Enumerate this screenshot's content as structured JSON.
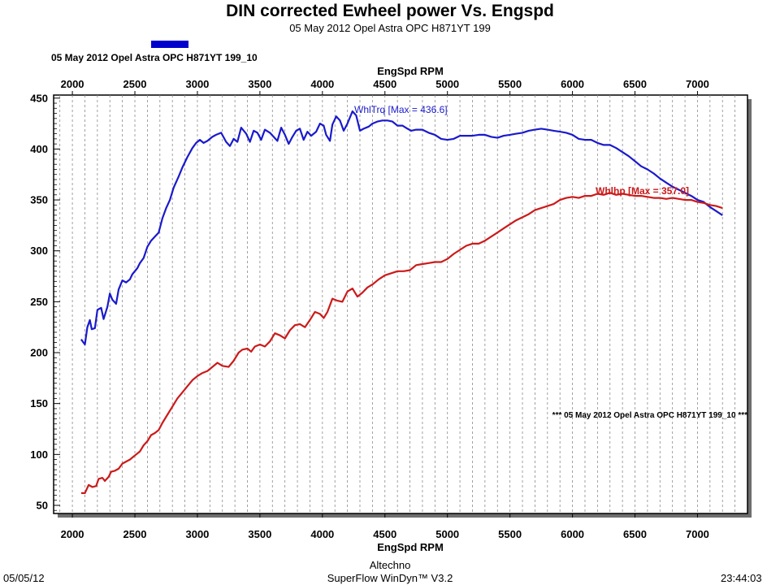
{
  "header": {
    "title": "DIN corrected Ewheel power Vs. Engspd",
    "subtitle": "05 May 2012 Opel Astra OPC H871YT 199"
  },
  "legend": {
    "label": "05 May 2012 Opel Astra OPC H871YT 199_10",
    "color": "#0000cc"
  },
  "footer": {
    "date": "05/05/12",
    "company": "Altechno",
    "software": "SuperFlow WinDyn™ V3.2",
    "time": "23:44:03"
  },
  "chart_data": {
    "type": "line",
    "xlabel_top": "EngSpd RPM",
    "xlabel_bottom": "EngSpd RPM",
    "ylabel": "",
    "xlim": [
      1850,
      7400
    ],
    "ylim": [
      42,
      453
    ],
    "x_ticks": [
      2000,
      2500,
      3000,
      3500,
      4000,
      4500,
      5000,
      5500,
      6000,
      6500,
      7000
    ],
    "y_ticks": [
      50,
      100,
      150,
      200,
      250,
      300,
      350,
      400,
      450
    ],
    "grid": "vertical-dashed",
    "run_note": "*** 05 May 2012 Opel Astra OPC H871YT 199_10 ***",
    "series": [
      {
        "name": "WhlTrq",
        "color": "#1a1acc",
        "annotation": "WhlTrq [Max = 436.6]",
        "points": [
          [
            2070,
            213
          ],
          [
            2100,
            208
          ],
          [
            2120,
            225
          ],
          [
            2140,
            232
          ],
          [
            2155,
            223
          ],
          [
            2180,
            224
          ],
          [
            2200,
            242
          ],
          [
            2230,
            244
          ],
          [
            2250,
            233
          ],
          [
            2280,
            245
          ],
          [
            2300,
            258
          ],
          [
            2320,
            252
          ],
          [
            2350,
            248
          ],
          [
            2370,
            262
          ],
          [
            2400,
            271
          ],
          [
            2430,
            269
          ],
          [
            2460,
            272
          ],
          [
            2480,
            277
          ],
          [
            2520,
            283
          ],
          [
            2540,
            288
          ],
          [
            2570,
            293
          ],
          [
            2600,
            304
          ],
          [
            2630,
            310
          ],
          [
            2660,
            314
          ],
          [
            2690,
            318
          ],
          [
            2720,
            332
          ],
          [
            2750,
            342
          ],
          [
            2780,
            350
          ],
          [
            2810,
            362
          ],
          [
            2850,
            373
          ],
          [
            2880,
            382
          ],
          [
            2920,
            392
          ],
          [
            2960,
            401
          ],
          [
            2990,
            406
          ],
          [
            3020,
            409
          ],
          [
            3050,
            406
          ],
          [
            3080,
            408
          ],
          [
            3120,
            412
          ],
          [
            3150,
            414
          ],
          [
            3190,
            416
          ],
          [
            3230,
            407
          ],
          [
            3260,
            403
          ],
          [
            3290,
            410
          ],
          [
            3320,
            407
          ],
          [
            3350,
            421
          ],
          [
            3390,
            415
          ],
          [
            3420,
            407
          ],
          [
            3450,
            418
          ],
          [
            3480,
            416
          ],
          [
            3510,
            409
          ],
          [
            3540,
            419
          ],
          [
            3580,
            416
          ],
          [
            3610,
            412
          ],
          [
            3640,
            408
          ],
          [
            3670,
            421
          ],
          [
            3700,
            414
          ],
          [
            3730,
            405
          ],
          [
            3760,
            412
          ],
          [
            3790,
            418
          ],
          [
            3820,
            420
          ],
          [
            3850,
            409
          ],
          [
            3880,
            417
          ],
          [
            3910,
            413
          ],
          [
            3950,
            417
          ],
          [
            3980,
            425
          ],
          [
            4010,
            423
          ],
          [
            4030,
            414
          ],
          [
            4060,
            408
          ],
          [
            4080,
            424
          ],
          [
            4110,
            432
          ],
          [
            4140,
            428
          ],
          [
            4170,
            418
          ],
          [
            4200,
            425
          ],
          [
            4240,
            437
          ],
          [
            4270,
            433
          ],
          [
            4300,
            418
          ],
          [
            4330,
            420
          ],
          [
            4370,
            422
          ],
          [
            4400,
            425
          ],
          [
            4440,
            427
          ],
          [
            4480,
            428
          ],
          [
            4520,
            428
          ],
          [
            4560,
            427
          ],
          [
            4600,
            423
          ],
          [
            4640,
            423
          ],
          [
            4680,
            420
          ],
          [
            4710,
            418
          ],
          [
            4750,
            419
          ],
          [
            4800,
            419
          ],
          [
            4850,
            416
          ],
          [
            4900,
            414
          ],
          [
            4950,
            410
          ],
          [
            5000,
            409
          ],
          [
            5050,
            410
          ],
          [
            5100,
            413
          ],
          [
            5150,
            413
          ],
          [
            5200,
            413
          ],
          [
            5250,
            414
          ],
          [
            5300,
            414
          ],
          [
            5350,
            412
          ],
          [
            5400,
            411
          ],
          [
            5450,
            413
          ],
          [
            5500,
            414
          ],
          [
            5550,
            415
          ],
          [
            5600,
            416
          ],
          [
            5650,
            418
          ],
          [
            5700,
            419
          ],
          [
            5750,
            420
          ],
          [
            5800,
            419
          ],
          [
            5850,
            418
          ],
          [
            5900,
            417
          ],
          [
            5950,
            416
          ],
          [
            6000,
            414
          ],
          [
            6050,
            410
          ],
          [
            6100,
            409
          ],
          [
            6150,
            409
          ],
          [
            6200,
            406
          ],
          [
            6250,
            404
          ],
          [
            6300,
            404
          ],
          [
            6350,
            401
          ],
          [
            6400,
            397
          ],
          [
            6450,
            393
          ],
          [
            6500,
            388
          ],
          [
            6550,
            383
          ],
          [
            6600,
            380
          ],
          [
            6650,
            376
          ],
          [
            6700,
            371
          ],
          [
            6750,
            367
          ],
          [
            6800,
            363
          ],
          [
            6850,
            360
          ],
          [
            6900,
            357
          ],
          [
            6950,
            354
          ],
          [
            7000,
            350
          ],
          [
            7050,
            348
          ],
          [
            7100,
            343
          ],
          [
            7150,
            339
          ],
          [
            7200,
            335
          ]
        ]
      },
      {
        "name": "Whlhp",
        "color": "#cc1a1a",
        "annotation": "Whlhp  [Max = 357.0]",
        "points": [
          [
            2070,
            62
          ],
          [
            2100,
            62
          ],
          [
            2130,
            70
          ],
          [
            2160,
            68
          ],
          [
            2190,
            69
          ],
          [
            2210,
            76
          ],
          [
            2240,
            77
          ],
          [
            2260,
            74
          ],
          [
            2290,
            78
          ],
          [
            2310,
            83
          ],
          [
            2340,
            84
          ],
          [
            2370,
            86
          ],
          [
            2400,
            91
          ],
          [
            2430,
            93
          ],
          [
            2460,
            95
          ],
          [
            2480,
            97
          ],
          [
            2510,
            100
          ],
          [
            2540,
            103
          ],
          [
            2570,
            109
          ],
          [
            2600,
            113
          ],
          [
            2630,
            119
          ],
          [
            2660,
            121
          ],
          [
            2690,
            124
          ],
          [
            2720,
            131
          ],
          [
            2760,
            139
          ],
          [
            2800,
            147
          ],
          [
            2840,
            155
          ],
          [
            2880,
            161
          ],
          [
            2920,
            167
          ],
          [
            2960,
            173
          ],
          [
            3000,
            177
          ],
          [
            3040,
            180
          ],
          [
            3080,
            182
          ],
          [
            3120,
            186
          ],
          [
            3160,
            190
          ],
          [
            3200,
            187
          ],
          [
            3250,
            186
          ],
          [
            3290,
            192
          ],
          [
            3330,
            200
          ],
          [
            3360,
            203
          ],
          [
            3400,
            204
          ],
          [
            3430,
            201
          ],
          [
            3460,
            206
          ],
          [
            3500,
            208
          ],
          [
            3540,
            206
          ],
          [
            3580,
            211
          ],
          [
            3620,
            219
          ],
          [
            3660,
            217
          ],
          [
            3700,
            214
          ],
          [
            3740,
            222
          ],
          [
            3780,
            227
          ],
          [
            3820,
            228
          ],
          [
            3860,
            225
          ],
          [
            3900,
            232
          ],
          [
            3940,
            240
          ],
          [
            3980,
            238
          ],
          [
            4010,
            234
          ],
          [
            4040,
            240
          ],
          [
            4080,
            253
          ],
          [
            4120,
            251
          ],
          [
            4160,
            250
          ],
          [
            4200,
            260
          ],
          [
            4240,
            263
          ],
          [
            4280,
            255
          ],
          [
            4320,
            259
          ],
          [
            4360,
            264
          ],
          [
            4400,
            267
          ],
          [
            4450,
            272
          ],
          [
            4500,
            276
          ],
          [
            4550,
            278
          ],
          [
            4600,
            280
          ],
          [
            4650,
            280
          ],
          [
            4700,
            281
          ],
          [
            4750,
            286
          ],
          [
            4800,
            287
          ],
          [
            4850,
            288
          ],
          [
            4900,
            289
          ],
          [
            4950,
            289
          ],
          [
            5000,
            292
          ],
          [
            5050,
            297
          ],
          [
            5100,
            301
          ],
          [
            5150,
            305
          ],
          [
            5200,
            307
          ],
          [
            5250,
            307
          ],
          [
            5300,
            310
          ],
          [
            5350,
            314
          ],
          [
            5400,
            318
          ],
          [
            5450,
            322
          ],
          [
            5500,
            326
          ],
          [
            5550,
            330
          ],
          [
            5600,
            333
          ],
          [
            5650,
            336
          ],
          [
            5700,
            340
          ],
          [
            5750,
            342
          ],
          [
            5800,
            344
          ],
          [
            5850,
            346
          ],
          [
            5900,
            350
          ],
          [
            5950,
            352
          ],
          [
            6000,
            353
          ],
          [
            6050,
            352
          ],
          [
            6100,
            354
          ],
          [
            6150,
            354
          ],
          [
            6200,
            356
          ],
          [
            6250,
            355
          ],
          [
            6300,
            357
          ],
          [
            6350,
            355
          ],
          [
            6400,
            356
          ],
          [
            6450,
            355
          ],
          [
            6500,
            354
          ],
          [
            6550,
            354
          ],
          [
            6600,
            353
          ],
          [
            6650,
            352
          ],
          [
            6700,
            352
          ],
          [
            6750,
            351
          ],
          [
            6800,
            352
          ],
          [
            6850,
            351
          ],
          [
            6900,
            350
          ],
          [
            6950,
            350
          ],
          [
            7000,
            348
          ],
          [
            7050,
            347
          ],
          [
            7100,
            345
          ],
          [
            7150,
            344
          ],
          [
            7200,
            342
          ]
        ]
      }
    ]
  }
}
